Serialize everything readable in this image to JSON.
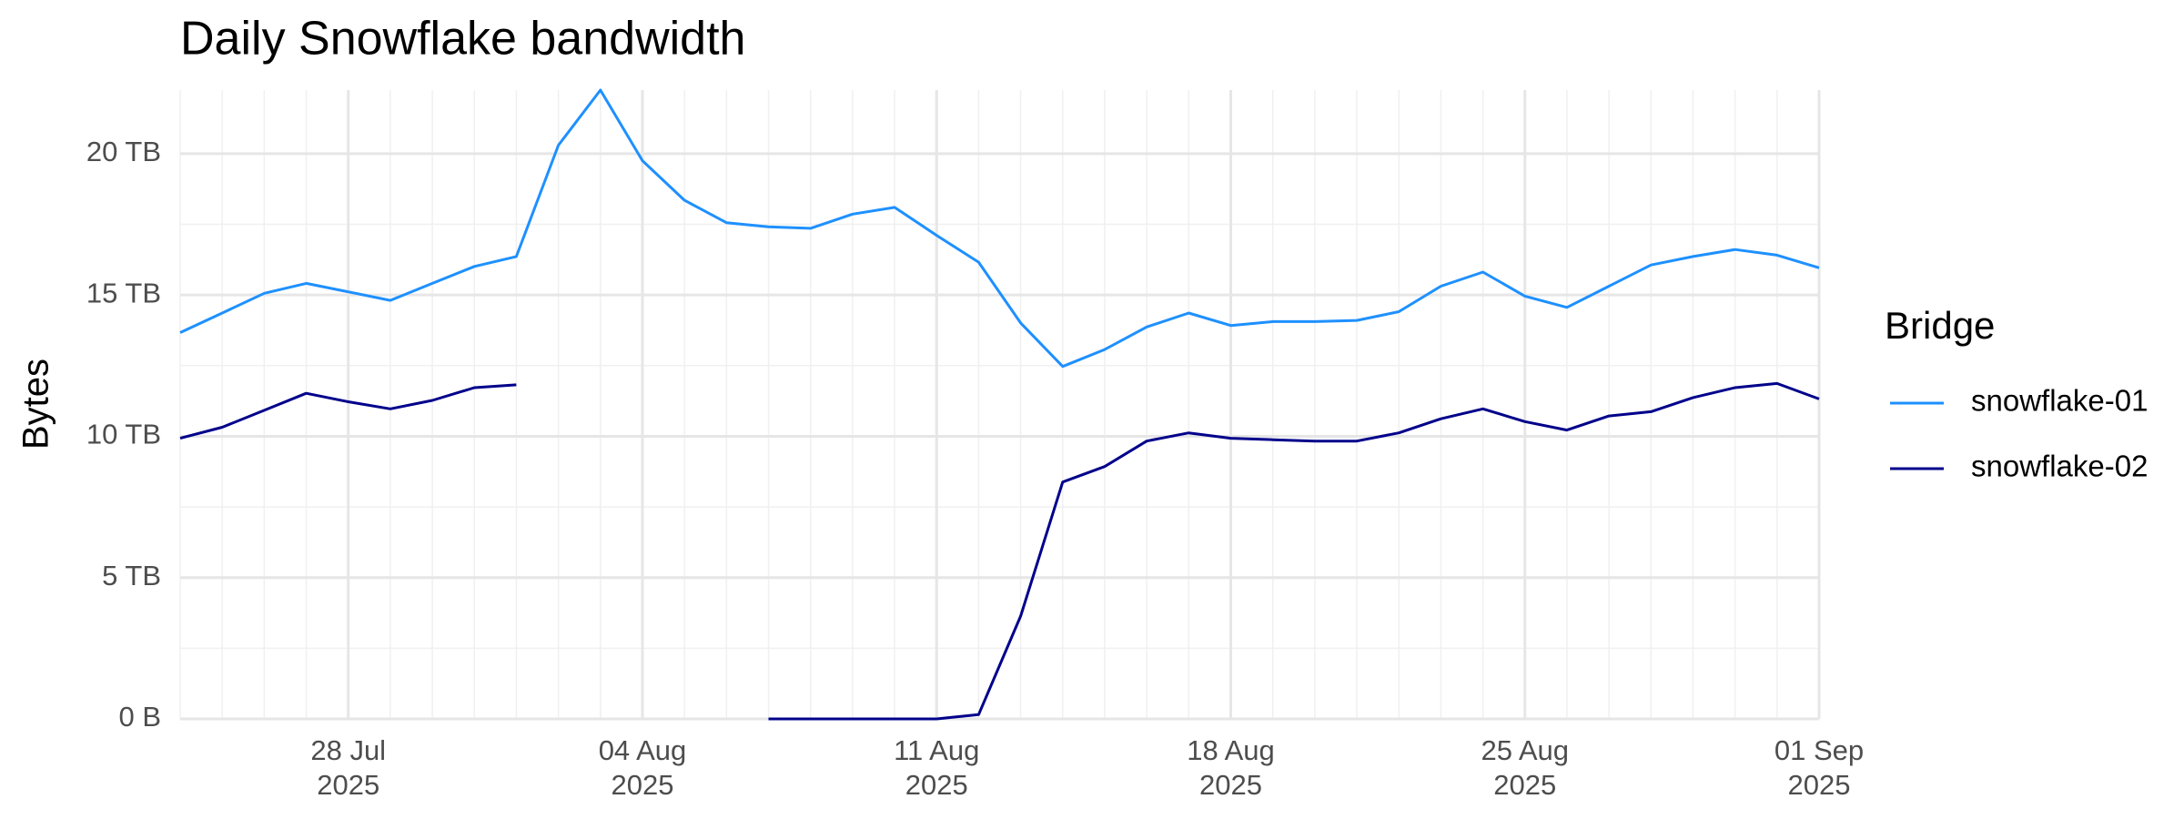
{
  "chart_data": {
    "type": "line",
    "title": "Daily Snowflake bandwidth",
    "y_label": "Bytes",
    "legend_title": "Bridge",
    "legend_position": "right",
    "grid": true,
    "x": [
      "2025-07-24",
      "2025-07-25",
      "2025-07-26",
      "2025-07-27",
      "2025-07-28",
      "2025-07-29",
      "2025-07-30",
      "2025-07-31",
      "2025-08-01",
      "2025-08-02",
      "2025-08-03",
      "2025-08-04",
      "2025-08-05",
      "2025-08-06",
      "2025-08-07",
      "2025-08-08",
      "2025-08-09",
      "2025-08-10",
      "2025-08-11",
      "2025-08-12",
      "2025-08-13",
      "2025-08-14",
      "2025-08-15",
      "2025-08-16",
      "2025-08-17",
      "2025-08-18",
      "2025-08-19",
      "2025-08-20",
      "2025-08-21",
      "2025-08-22",
      "2025-08-23",
      "2025-08-24",
      "2025-08-25",
      "2025-08-26",
      "2025-08-27",
      "2025-08-28",
      "2025-08-29",
      "2025-08-30",
      "2025-08-31",
      "2025-09-01"
    ],
    "xlim": [
      "2025-07-24",
      "2025-09-01"
    ],
    "xticks": [
      {
        "value": "2025-07-28",
        "label": "28 Jul\n2025"
      },
      {
        "value": "2025-08-04",
        "label": "04 Aug\n2025"
      },
      {
        "value": "2025-08-11",
        "label": "11 Aug\n2025"
      },
      {
        "value": "2025-08-18",
        "label": "18 Aug\n2025"
      },
      {
        "value": "2025-08-25",
        "label": "25 Aug\n2025"
      },
      {
        "value": "2025-09-01",
        "label": "01 Sep\n2025"
      }
    ],
    "ylim": [
      0,
      22.25
    ],
    "yticks": [
      {
        "value": 0,
        "label": "0 B"
      },
      {
        "value": 5,
        "label": "5 TB"
      },
      {
        "value": 10,
        "label": "10 TB"
      },
      {
        "value": 15,
        "label": "15 TB"
      },
      {
        "value": 20,
        "label": "20 TB"
      }
    ],
    "series": [
      {
        "name": "snowflake-01",
        "color": "#1e90ff",
        "values": [
          13.67,
          14.36,
          15.06,
          15.41,
          15.11,
          14.81,
          15.41,
          16.01,
          16.36,
          20.3,
          22.25,
          19.75,
          18.35,
          17.56,
          17.41,
          17.36,
          17.86,
          18.1,
          17.11,
          16.16,
          14.01,
          12.47,
          13.07,
          13.87,
          14.36,
          13.92,
          14.06,
          14.06,
          14.1,
          14.41,
          15.31,
          15.81,
          14.96,
          14.56,
          15.31,
          16.06,
          16.36,
          16.61,
          16.41,
          15.96
        ]
      },
      {
        "name": "snowflake-02",
        "color": "#00008b",
        "values": [
          9.93,
          10.32,
          10.92,
          11.52,
          11.22,
          10.97,
          11.27,
          11.72,
          11.82,
          null,
          null,
          null,
          null,
          null,
          0,
          0,
          0,
          0,
          0,
          0.15,
          3.64,
          8.38,
          8.93,
          9.83,
          10.12,
          9.93,
          9.88,
          9.83,
          9.83,
          10.12,
          10.62,
          10.97,
          10.52,
          10.22,
          10.72,
          10.87,
          11.37,
          11.72,
          11.87,
          11.32
        ]
      }
    ]
  }
}
